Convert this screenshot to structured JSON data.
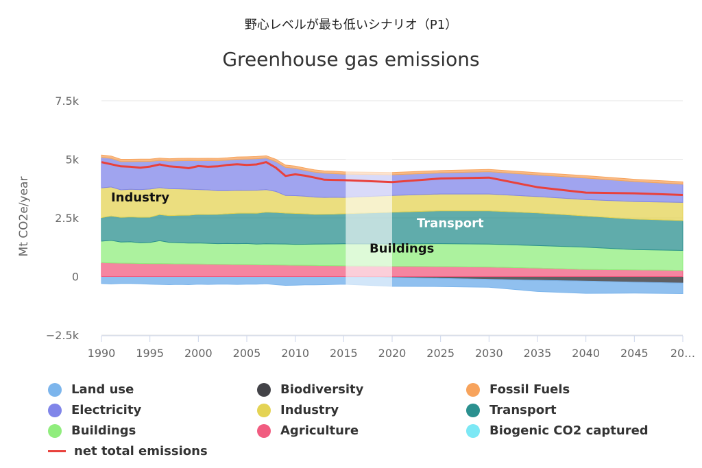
{
  "subtitle": "野心レベルが最も低いシナリオ（P1）",
  "title": "Greenhouse gas emissions",
  "chart_data": {
    "type": "area",
    "title": "Greenhouse gas emissions",
    "subtitle": "野心レベルが最も低いシナリオ（P1）",
    "ylabel": "Mt CO2e/year",
    "ylim": [
      -2500,
      7500
    ],
    "yticks": [
      "−2.5k",
      "0",
      "2.5k",
      "5k",
      "7.5k"
    ],
    "ytick_values": [
      -2500,
      0,
      2500,
      5000,
      7500
    ],
    "xlim": [
      1990,
      2050
    ],
    "xticks": [
      "1990",
      "1995",
      "2000",
      "2005",
      "2010",
      "2015",
      "2020",
      "2025",
      "2030",
      "2035",
      "2040",
      "2045",
      "20…"
    ],
    "xtick_values": [
      1990,
      1995,
      2000,
      2005,
      2010,
      2015,
      2020,
      2025,
      2030,
      2035,
      2040,
      2045,
      2050
    ],
    "grid": true,
    "legend_position": "bottom",
    "highlight_band": [
      2015,
      2020
    ],
    "x": [
      1990,
      1991,
      1992,
      1993,
      1994,
      1995,
      1996,
      1997,
      1998,
      1999,
      2000,
      2001,
      2002,
      2003,
      2004,
      2005,
      2006,
      2007,
      2008,
      2009,
      2010,
      2011,
      2012,
      2013,
      2014,
      2015,
      2020,
      2025,
      2030,
      2035,
      2040,
      2045,
      2050
    ],
    "negative_series": [
      {
        "name": "Biodiversity",
        "color": "#434348",
        "values": [
          0,
          0,
          0,
          0,
          0,
          0,
          0,
          0,
          0,
          0,
          0,
          0,
          0,
          0,
          0,
          0,
          0,
          0,
          0,
          0,
          0,
          0,
          0,
          0,
          0,
          0,
          -40,
          -80,
          -120,
          -160,
          -200,
          -240,
          -280
        ]
      },
      {
        "name": "Land use",
        "color": "#7cb5ec",
        "values": [
          -300,
          -320,
          -300,
          -300,
          -310,
          -330,
          -340,
          -350,
          -340,
          -350,
          -330,
          -340,
          -330,
          -330,
          -340,
          -330,
          -330,
          -310,
          -350,
          -380,
          -370,
          -360,
          -360,
          -350,
          -340,
          -330,
          -380,
          -350,
          -340,
          -480,
          -520,
          -470,
          -450
        ]
      }
    ],
    "positive_series": [
      {
        "name": "Agriculture",
        "color": "#f15c80",
        "values": [
          590,
          580,
          570,
          560,
          555,
          550,
          550,
          545,
          540,
          535,
          530,
          525,
          520,
          515,
          510,
          505,
          500,
          495,
          490,
          485,
          480,
          475,
          470,
          465,
          460,
          455,
          440,
          420,
          400,
          360,
          300,
          280,
          260
        ]
      },
      {
        "name": "Buildings",
        "color": "#90ed7d",
        "values": [
          920,
          960,
          900,
          920,
          880,
          900,
          980,
          910,
          900,
          890,
          900,
          890,
          880,
          890,
          890,
          900,
          880,
          900,
          900,
          900,
          890,
          900,
          910,
          920,
          930,
          940,
          950,
          980,
          980,
          960,
          950,
          870,
          850
        ]
      },
      {
        "name": "Transport",
        "color": "#2b908f",
        "values": [
          1000,
          1040,
          1050,
          1060,
          1090,
          1080,
          1110,
          1140,
          1170,
          1190,
          1220,
          1230,
          1250,
          1270,
          1300,
          1300,
          1320,
          1350,
          1340,
          1320,
          1320,
          1300,
          1270,
          1270,
          1270,
          1280,
          1350,
          1400,
          1420,
          1390,
          1330,
          1300,
          1280
        ]
      },
      {
        "name": "Industry",
        "color": "#e4d354",
        "values": [
          1270,
          1240,
          1180,
          1180,
          1180,
          1200,
          1150,
          1150,
          1130,
          1110,
          1060,
          1050,
          1010,
          990,
          980,
          970,
          980,
          960,
          900,
          750,
          760,
          750,
          740,
          720,
          720,
          700,
          720,
          720,
          720,
          700,
          700,
          750,
          770
        ]
      },
      {
        "name": "Electricity",
        "color": "#8085e9",
        "values": [
          1300,
          1220,
          1200,
          1180,
          1200,
          1180,
          1160,
          1180,
          1200,
          1220,
          1230,
          1250,
          1280,
          1300,
          1320,
          1330,
          1340,
          1350,
          1270,
          1200,
          1160,
          1100,
          1060,
          1030,
          1010,
          990,
          880,
          900,
          950,
          920,
          920,
          850,
          780
        ]
      },
      {
        "name": "Biogenic CO2 captured",
        "color": "#7ce8f5",
        "values": [
          0,
          0,
          0,
          0,
          0,
          0,
          0,
          0,
          0,
          0,
          0,
          0,
          0,
          0,
          0,
          0,
          0,
          0,
          0,
          0,
          0,
          0,
          0,
          0,
          0,
          0,
          0,
          0,
          0,
          0,
          0,
          0,
          0
        ]
      },
      {
        "name": "Fossil Fuels",
        "color": "#f7a35c",
        "values": [
          100,
          100,
          100,
          100,
          100,
          100,
          100,
          100,
          100,
          100,
          100,
          100,
          100,
          100,
          100,
          100,
          100,
          100,
          100,
          100,
          100,
          100,
          100,
          100,
          100,
          100,
          100,
          100,
          100,
          100,
          100,
          100,
          100
        ]
      }
    ],
    "line_series": {
      "name": "net total emissions",
      "color": "#e8413c",
      "values": [
        4880,
        4790,
        4700,
        4680,
        4640,
        4690,
        4780,
        4700,
        4670,
        4620,
        4710,
        4680,
        4700,
        4760,
        4790,
        4760,
        4780,
        4880,
        4640,
        4290,
        4360,
        4300,
        4220,
        4130,
        4120,
        4110,
        4030,
        4180,
        4220,
        3810,
        3580,
        3550,
        3480
      ]
    },
    "area_labels": [
      {
        "text": "Industry",
        "x": 1994,
        "y": 3200,
        "color": "#111111"
      },
      {
        "text": "Transport",
        "x": 2026,
        "y": 2100,
        "color": "#ffffff"
      },
      {
        "text": "Buildings",
        "x": 2021,
        "y": 1020,
        "color": "#111111"
      }
    ]
  },
  "legend": [
    {
      "name": "Land use",
      "color": "#7cb5ec",
      "kind": "dot"
    },
    {
      "name": "Biodiversity",
      "color": "#434348",
      "kind": "dot"
    },
    {
      "name": "Fossil Fuels",
      "color": "#f7a35c",
      "kind": "dot"
    },
    {
      "name": "Electricity",
      "color": "#8085e9",
      "kind": "dot"
    },
    {
      "name": "Industry",
      "color": "#e4d354",
      "kind": "dot"
    },
    {
      "name": "Transport",
      "color": "#2b908f",
      "kind": "dot"
    },
    {
      "name": "Buildings",
      "color": "#90ed7d",
      "kind": "dot"
    },
    {
      "name": "Agriculture",
      "color": "#f15c80",
      "kind": "dot"
    },
    {
      "name": "Biogenic CO2 captured",
      "color": "#7ce8f5",
      "kind": "dot"
    },
    {
      "name": "net total emissions",
      "color": "#e8413c",
      "kind": "line"
    }
  ]
}
